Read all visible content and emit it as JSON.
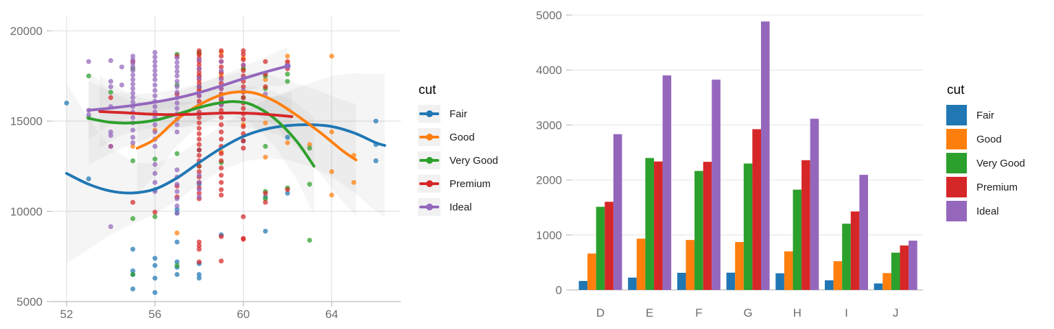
{
  "palette": {
    "Fair": "#2077b4",
    "Good": "#ff7f0e",
    "Very Good": "#2ca02c",
    "Premium": "#d62728",
    "Ideal": "#9467bd"
  },
  "cuts": [
    "Fair",
    "Good",
    "Very Good",
    "Premium",
    "Ideal"
  ],
  "style": {
    "grid_color": "#e4e4e4",
    "axis_color": "#bdbdbd",
    "band_color": "#999999",
    "tick_text_color": "#6d6d6d",
    "background": "#ffffff"
  },
  "chart_data": [
    {
      "type": "scatter",
      "title": "",
      "xlabel": "",
      "ylabel": "",
      "legend": {
        "title": "cut",
        "position": "right"
      },
      "x_ticks": [
        52,
        56,
        60,
        64
      ],
      "y_ticks": [
        5000,
        10000,
        15000,
        20000
      ],
      "xlim": [
        51.3,
        67.1
      ],
      "ylim": [
        4400,
        20800
      ],
      "grid": true,
      "points": {
        "Fair": [
          {
            "x": 52,
            "ys": [
              16000
            ]
          },
          {
            "x": 53,
            "ys": [
              11800
            ]
          },
          {
            "x": 55,
            "ys": [
              7900,
              6700,
              6500,
              5700
            ]
          },
          {
            "x": 56,
            "ys": [
              11200,
              7400,
              7000,
              6300,
              5500
            ]
          },
          {
            "x": 57,
            "ys": [
              10100,
              9900,
              8300,
              7200,
              6900,
              6500
            ]
          },
          {
            "x": 58,
            "ys": [
              13400,
              11500,
              7100,
              6500,
              6300
            ]
          },
          {
            "x": 59,
            "ys": [
              8700
            ]
          },
          {
            "x": 60,
            "ys": [
              13900
            ]
          },
          {
            "x": 61,
            "ys": [
              10800,
              8900
            ]
          },
          {
            "x": 62,
            "ys": [
              14100,
              11000
            ]
          },
          {
            "x": 66,
            "ys": [
              15000,
              13700,
              12800
            ]
          }
        ],
        "Good": [
          {
            "x": 55,
            "ys": [
              13600
            ]
          },
          {
            "x": 56,
            "ys": [
              14500
            ]
          },
          {
            "x": 57,
            "ys": [
              8800
            ]
          },
          {
            "x": 58,
            "ys": [
              18700,
              17500,
              16800
            ]
          },
          {
            "x": 59,
            "ys": [
              18800,
              17600,
              16200,
              13300
            ]
          },
          {
            "x": 60,
            "ys": [
              18500,
              17900,
              14800
            ]
          },
          {
            "x": 61,
            "ys": [
              17300,
              14900,
              13000
            ]
          },
          {
            "x": 62,
            "ys": [
              18600,
              18200,
              13800
            ]
          },
          {
            "x": 63,
            "ys": [
              13700
            ]
          },
          {
            "x": 64,
            "ys": [
              18600,
              14400,
              12200,
              10900
            ]
          },
          {
            "x": 65,
            "ys": [
              13100,
              11600
            ]
          }
        ],
        "Very Good": [
          {
            "x": 53,
            "ys": [
              17500,
              15200
            ]
          },
          {
            "x": 54,
            "ys": [
              16600
            ]
          },
          {
            "x": 55,
            "ys": [
              17900,
              12800,
              9600,
              6500
            ]
          },
          {
            "x": 56,
            "ys": [
              12900,
              9700
            ]
          },
          {
            "x": 57,
            "ys": [
              18700,
              17000,
              13200,
              7000
            ]
          },
          {
            "x": 58,
            "ys": [
              18800,
              16900,
              12500
            ]
          },
          {
            "x": 59,
            "ys": [
              16000,
              12700
            ]
          },
          {
            "x": 60,
            "ys": [
              17900,
              16300
            ]
          },
          {
            "x": 61,
            "ys": [
              17500,
              16800,
              13600,
              11100,
              10700
            ]
          },
          {
            "x": 62,
            "ys": [
              17600,
              17200,
              11300
            ]
          },
          {
            "x": 63,
            "ys": [
              13500,
              11500,
              8400
            ]
          }
        ],
        "Premium": [
          {
            "x": 54,
            "ys": [
              16300,
              13600
            ]
          },
          {
            "x": 55,
            "ys": [
              18300,
              10500
            ]
          },
          {
            "x": 56,
            "ys": [
              9950
            ]
          },
          {
            "x": 57,
            "ys": [
              18600,
              16500,
              11400,
              10800
            ]
          },
          {
            "x": 58,
            "ys": [
              18900,
              18700,
              18500,
              18300,
              18100,
              17900,
              17700,
              17500,
              17300,
              17100,
              16900,
              16700,
              16400,
              16100,
              15800,
              15500,
              15200,
              14900,
              14600,
              14300,
              14000,
              13700,
              13400,
              13100,
              12800,
              12500,
              12200,
              11900,
              11600,
              11300,
              11000,
              10700,
              8300,
              8100,
              7900,
              7200
            ]
          },
          {
            "x": 59,
            "ys": [
              18900,
              18600,
              18300,
              18000,
              17700,
              17400,
              17100,
              16800,
              16500,
              16200,
              15900,
              15600,
              15200,
              14800,
              14400,
              14000,
              13600,
              13200,
              12800,
              12400,
              12000,
              11600,
              11200,
              10900,
              8600,
              7250
            ]
          },
          {
            "x": 60,
            "ys": [
              18900,
              18700,
              18400,
              18100,
              17800,
              17500,
              17200,
              16900,
              16600,
              16300,
              16000,
              15700,
              15400,
              15100,
              14700,
              14300,
              13900,
              13500,
              9700,
              8500,
              8450
            ]
          },
          {
            "x": 61,
            "ys": [
              18300,
              17600,
              16900,
              11000,
              10500
            ]
          },
          {
            "x": 62,
            "ys": [
              18300,
              17900,
              11200
            ]
          }
        ],
        "Ideal": [
          {
            "x": 53,
            "ys": [
              18300,
              15600,
              15350
            ]
          },
          {
            "x": 54,
            "ys": [
              18350,
              17200,
              16900,
              15800,
              14400,
              14200,
              13600,
              9150
            ]
          },
          {
            "x": 54.5,
            "ys": [
              18000,
              17000
            ]
          },
          {
            "x": 55,
            "ys": [
              18600,
              18400,
              18200,
              18000,
              17800,
              17550,
              17300,
              17050,
              16800,
              16550,
              16300,
              16050,
              15800,
              15500,
              15200,
              14900,
              14500,
              14100,
              13800
            ]
          },
          {
            "x": 56,
            "ys": [
              18800,
              18550,
              18300,
              18050,
              17800,
              17550,
              17300,
              17000,
              16700,
              16400,
              16100,
              15800,
              15500,
              15200,
              14800,
              14400,
              14000,
              13600,
              12600,
              12100,
              11600,
              11100
            ]
          },
          {
            "x": 57,
            "ys": [
              18500,
              18250,
              18000,
              17750,
              17500,
              17200,
              16900,
              16600,
              16300,
              16000,
              15700,
              15400,
              15100,
              14800,
              14400,
              12300,
              11900,
              11500,
              11100,
              10700,
              10300,
              9900
            ]
          },
          {
            "x": 58,
            "ys": [
              18400,
              17900,
              17400,
              16900,
              16400,
              15900,
              15400,
              12000,
              11600,
              11200,
              10800
            ]
          },
          {
            "x": 59,
            "ys": [
              18300,
              17800,
              17300,
              16800,
              16300,
              15900
            ]
          },
          {
            "x": 60,
            "ys": [
              18100,
              17400,
              16700
            ]
          },
          {
            "x": 61,
            "ys": [
              16500
            ]
          }
        ]
      },
      "smooth": {
        "Fair": {
          "x": [
            52,
            53,
            54,
            55,
            56,
            57,
            58,
            59,
            60,
            61,
            62,
            63,
            64,
            65,
            66,
            66.4
          ],
          "y": [
            12100,
            11500,
            11120,
            11020,
            11230,
            11850,
            12700,
            13500,
            14150,
            14550,
            14750,
            14800,
            14700,
            14350,
            13800,
            13650
          ],
          "hw": [
            5000,
            3600,
            2400,
            1700,
            1400,
            1250,
            1200,
            1250,
            1400,
            1600,
            1900,
            2300,
            2800,
            3300,
            3800,
            4000
          ]
        },
        "Good": {
          "x": [
            55.2,
            56,
            57,
            58,
            59,
            59.8,
            60.6,
            61.5,
            62.5,
            63.5,
            64.5,
            65.1
          ],
          "y": [
            13500,
            14000,
            15100,
            15900,
            16450,
            16620,
            16520,
            16050,
            15250,
            14350,
            13350,
            12850
          ],
          "hw": [
            2600,
            2000,
            1450,
            1150,
            1050,
            1050,
            1150,
            1400,
            1800,
            2300,
            2800,
            3100
          ]
        },
        "Very Good": {
          "x": [
            53,
            54,
            55,
            56,
            57,
            58,
            58.8,
            59.6,
            60.4,
            61.4,
            62.4,
            63.2
          ],
          "y": [
            15150,
            14930,
            14900,
            15050,
            15380,
            15750,
            15980,
            16080,
            15900,
            15150,
            13900,
            12500
          ],
          "hw": [
            2600,
            1700,
            1150,
            900,
            820,
            800,
            830,
            880,
            1050,
            1500,
            2100,
            2700
          ]
        },
        "Premium": {
          "x": [
            53.5,
            54.5,
            55.5,
            56.5,
            57.5,
            58.5,
            59.5,
            60.5,
            61.5,
            62.2
          ],
          "y": [
            15530,
            15470,
            15400,
            15360,
            15370,
            15420,
            15450,
            15420,
            15330,
            15250
          ],
          "hw": [
            2000,
            1250,
            850,
            720,
            690,
            690,
            730,
            850,
            1050,
            1400
          ]
        },
        "Ideal": {
          "x": [
            53,
            54,
            55,
            56,
            57,
            58,
            59,
            60,
            61,
            62
          ],
          "y": [
            15600,
            15720,
            15870,
            16050,
            16280,
            16580,
            16950,
            17350,
            17720,
            18050
          ],
          "hw": [
            1600,
            900,
            620,
            520,
            490,
            500,
            570,
            680,
            820,
            1050
          ]
        }
      }
    },
    {
      "type": "bar",
      "title": "",
      "xlabel": "",
      "ylabel": "",
      "legend": {
        "title": "cut",
        "position": "right"
      },
      "categories": [
        "D",
        "E",
        "F",
        "G",
        "H",
        "I",
        "J"
      ],
      "series": [
        {
          "name": "Fair",
          "values": [
            163,
            224,
            312,
            314,
            303,
            175,
            119
          ]
        },
        {
          "name": "Good",
          "values": [
            662,
            933,
            909,
            871,
            702,
            522,
            307
          ]
        },
        {
          "name": "Very Good",
          "values": [
            1513,
            2400,
            2164,
            2299,
            1824,
            1204,
            678
          ]
        },
        {
          "name": "Premium",
          "values": [
            1603,
            2337,
            2331,
            2924,
            2360,
            1428,
            808
          ]
        },
        {
          "name": "Ideal",
          "values": [
            2834,
            3903,
            3826,
            4884,
            3115,
            2093,
            896
          ]
        }
      ],
      "y_ticks": [
        0,
        1000,
        2000,
        3000,
        4000,
        5000
      ],
      "ylim": [
        0,
        5000
      ],
      "grid": true
    }
  ]
}
